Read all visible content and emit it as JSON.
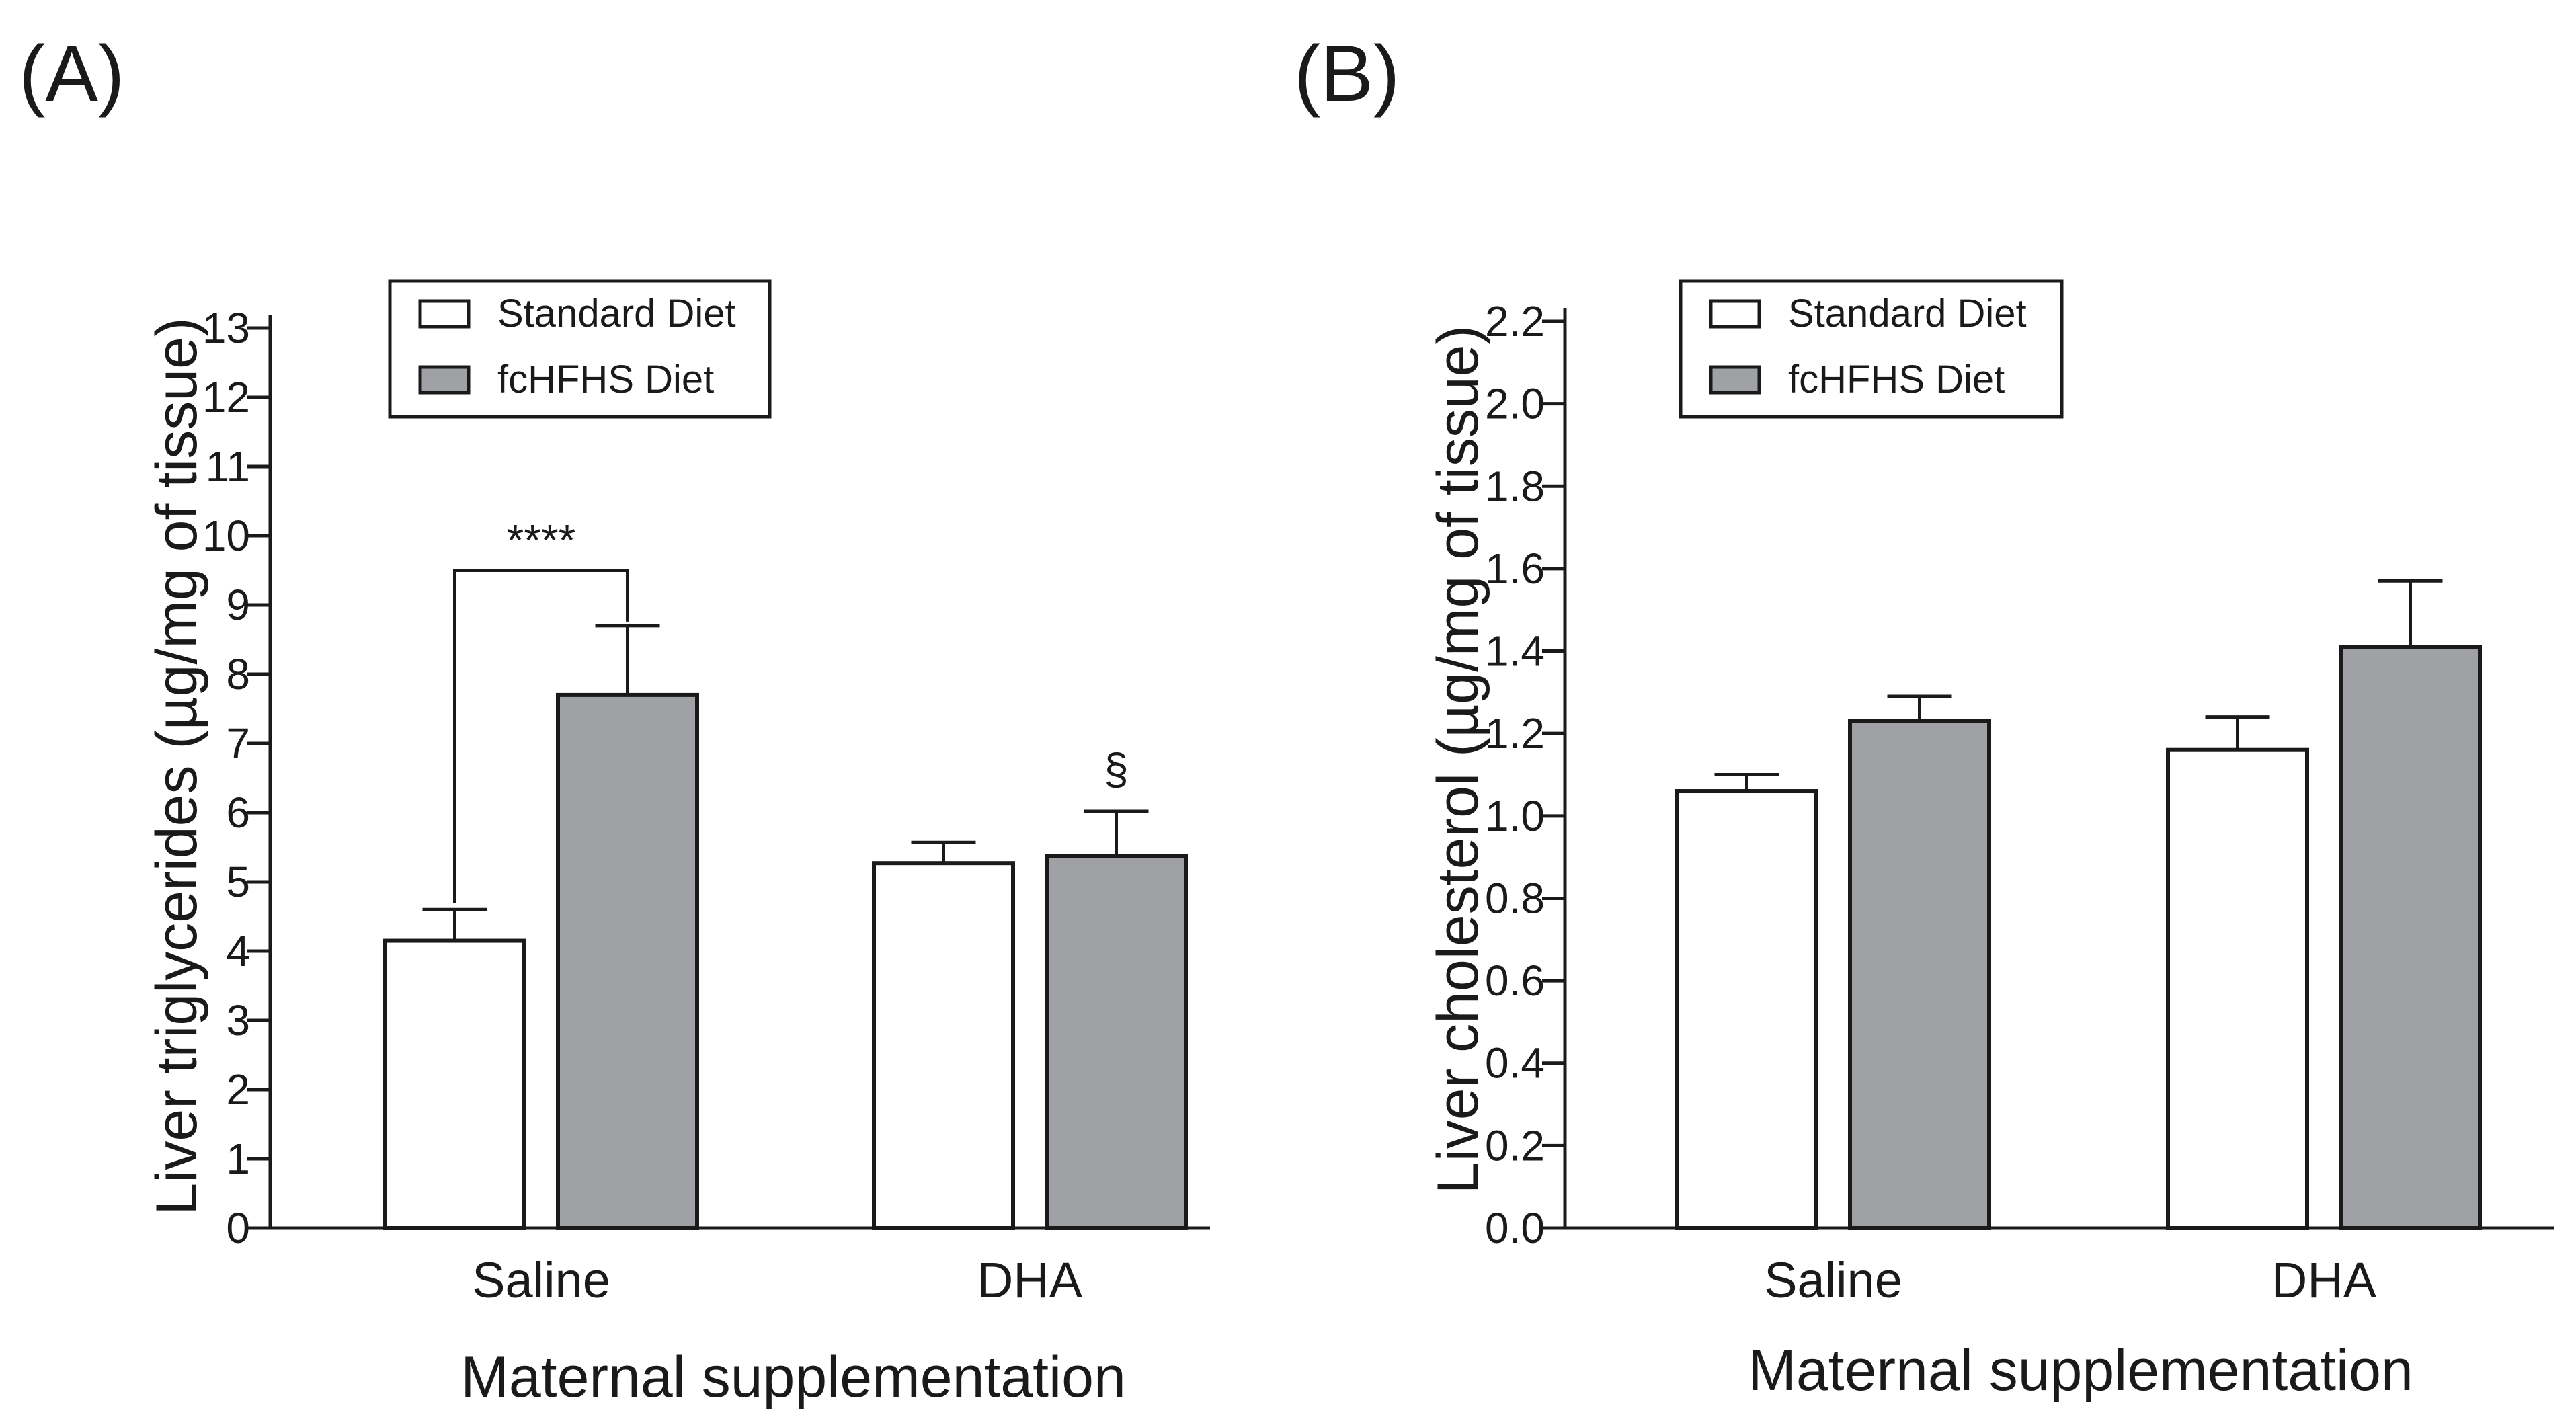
{
  "chart_data": [
    {
      "type": "bar",
      "panel_label": "(A)",
      "title": "",
      "xlabel": "Maternal supplementation",
      "ylabel": "Liver triglycerides (µg/mg of tissue)",
      "categories": [
        "Saline",
        "DHA"
      ],
      "ylim": [
        0,
        13
      ],
      "yticks": [
        "0",
        "1",
        "2",
        "3",
        "4",
        "5",
        "6",
        "7",
        "8",
        "9",
        "10",
        "11",
        "12",
        "13"
      ],
      "series": [
        {
          "name": "Standard Diet",
          "color": "#ffffff",
          "values": [
            4.15,
            5.27
          ],
          "errors": [
            0.45,
            0.3
          ]
        },
        {
          "name": "fcHFHS Diet",
          "color": "#a0a1a4",
          "values": [
            7.7,
            5.37
          ],
          "errors": [
            1.0,
            0.65
          ]
        }
      ],
      "legend_position": "top-left",
      "significance_bracket": {
        "label": "****",
        "category": "Saline",
        "left_series": 0,
        "right_series": 1,
        "y": 9.5
      },
      "annotations": [
        {
          "label": "§",
          "category": "DHA",
          "series": 1
        }
      ]
    },
    {
      "type": "bar",
      "panel_label": "(B)",
      "title": "",
      "xlabel": "Maternal supplementation",
      "ylabel": "Liver cholesterol (µg/mg of tissue)",
      "categories": [
        "Saline",
        "DHA"
      ],
      "ylim": [
        0,
        2.2
      ],
      "yticks": [
        "0.0",
        "0.2",
        "0.4",
        "0.6",
        "0.8",
        "1.0",
        "1.2",
        "1.4",
        "1.6",
        "1.8",
        "2.0",
        "2.2"
      ],
      "series": [
        {
          "name": "Standard Diet",
          "color": "#ffffff",
          "values": [
            1.06,
            1.16
          ],
          "errors": [
            0.04,
            0.08
          ]
        },
        {
          "name": "fcHFHS Diet",
          "color": "#a0a1a4",
          "values": [
            1.23,
            1.41
          ],
          "errors": [
            0.06,
            0.16
          ]
        }
      ],
      "legend_position": "top-left",
      "annotations": []
    }
  ]
}
